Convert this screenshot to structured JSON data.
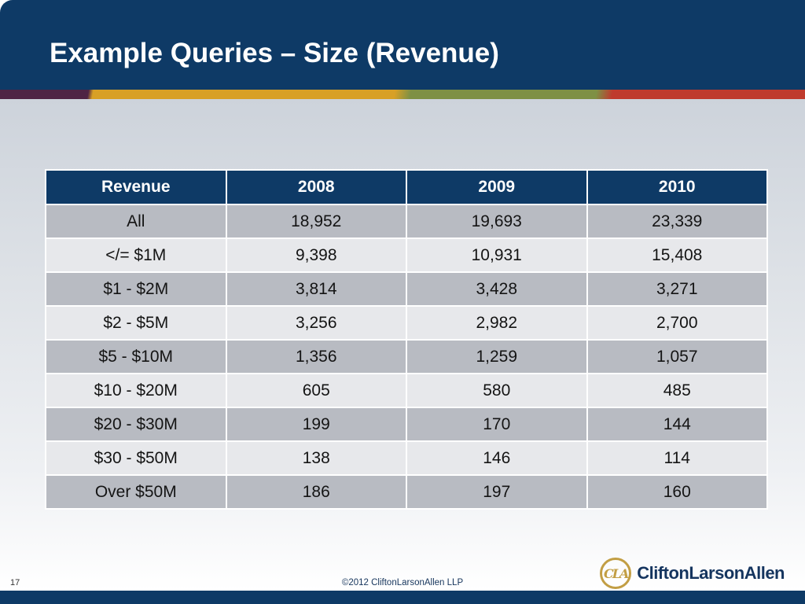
{
  "slide": {
    "title": "Example Queries – Size (Revenue)",
    "page_number": "17"
  },
  "table": {
    "headers": [
      "Revenue",
      "2008",
      "2009",
      "2010"
    ],
    "rows": [
      {
        "label": "All",
        "values": [
          "18,952",
          "19,693",
          "23,339"
        ]
      },
      {
        "label": "</= $1M",
        "values": [
          "9,398",
          "10,931",
          "15,408"
        ]
      },
      {
        "label": "$1 - $2M",
        "values": [
          "3,814",
          "3,428",
          "3,271"
        ]
      },
      {
        "label": "$2 - $5M",
        "values": [
          "3,256",
          "2,982",
          "2,700"
        ]
      },
      {
        "label": "$5 - $10M",
        "values": [
          "1,356",
          "1,259",
          "1,057"
        ]
      },
      {
        "label": "$10 - $20M",
        "values": [
          "605",
          "580",
          "485"
        ]
      },
      {
        "label": "$20 - $30M",
        "values": [
          "199",
          "170",
          "144"
        ]
      },
      {
        "label": "$30 - $50M",
        "values": [
          "138",
          "146",
          "114"
        ]
      },
      {
        "label": "Over $50M",
        "values": [
          "186",
          "197",
          "160"
        ]
      }
    ]
  },
  "footer": {
    "copyright": "©2012 CliftonLarsonAllen LLP",
    "logo_monogram": "CLA",
    "logo_text": "CliftonLarsonAllen"
  },
  "colors": {
    "header_navy": "#0e3a66",
    "accent_maroon": "#4f2444",
    "accent_gold": "#d8a026",
    "accent_green": "#7e9044",
    "accent_red": "#bf3a2d",
    "logo_gold": "#c29e44",
    "row_dark": "#b8bbc2",
    "row_light": "#e7e8eb"
  }
}
